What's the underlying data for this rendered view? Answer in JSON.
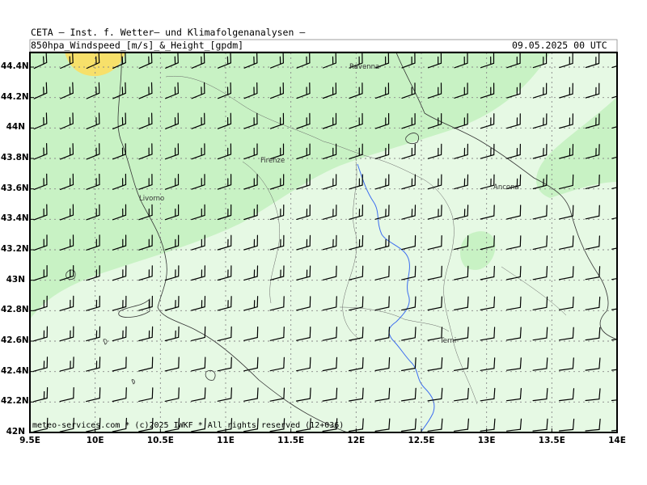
{
  "header": {
    "line1": "CETA — Inst. f. Wetter– und Klimafolgenanalysen —",
    "param": "850hpa_Windspeed_[m/s]_&_Height_[gpdm]",
    "valid": "09.05.2025 00 UTC"
  },
  "footer": {
    "credit": "meteo-services.com * (c)2025 IWKF * All rights reserved (12+036)"
  },
  "axes": {
    "lon_labels": [
      "9.5E",
      "10E",
      "10.5E",
      "11E",
      "11.5E",
      "12E",
      "12.5E",
      "13E",
      "13.5E",
      "14E"
    ],
    "lat_labels": [
      "44.4N",
      "44.2N",
      "44N",
      "43.8N",
      "43.6N",
      "43.4N",
      "43.2N",
      "43N",
      "42.8N",
      "42.6N",
      "42.4N",
      "42.2N",
      "42N"
    ]
  },
  "cities": [
    {
      "name": "Ravenna"
    },
    {
      "name": "Firenze"
    },
    {
      "name": "Livorno"
    },
    {
      "name": "Ancona"
    },
    {
      "name": "Terni"
    }
  ],
  "colors": {
    "light_green": "#e6f9e4",
    "mid_green": "#c8f2c4",
    "yellow": "#f7e06a",
    "river": "#3b6cf0",
    "coast": "#333333",
    "grid": "#888888",
    "frame": "#000000"
  }
}
